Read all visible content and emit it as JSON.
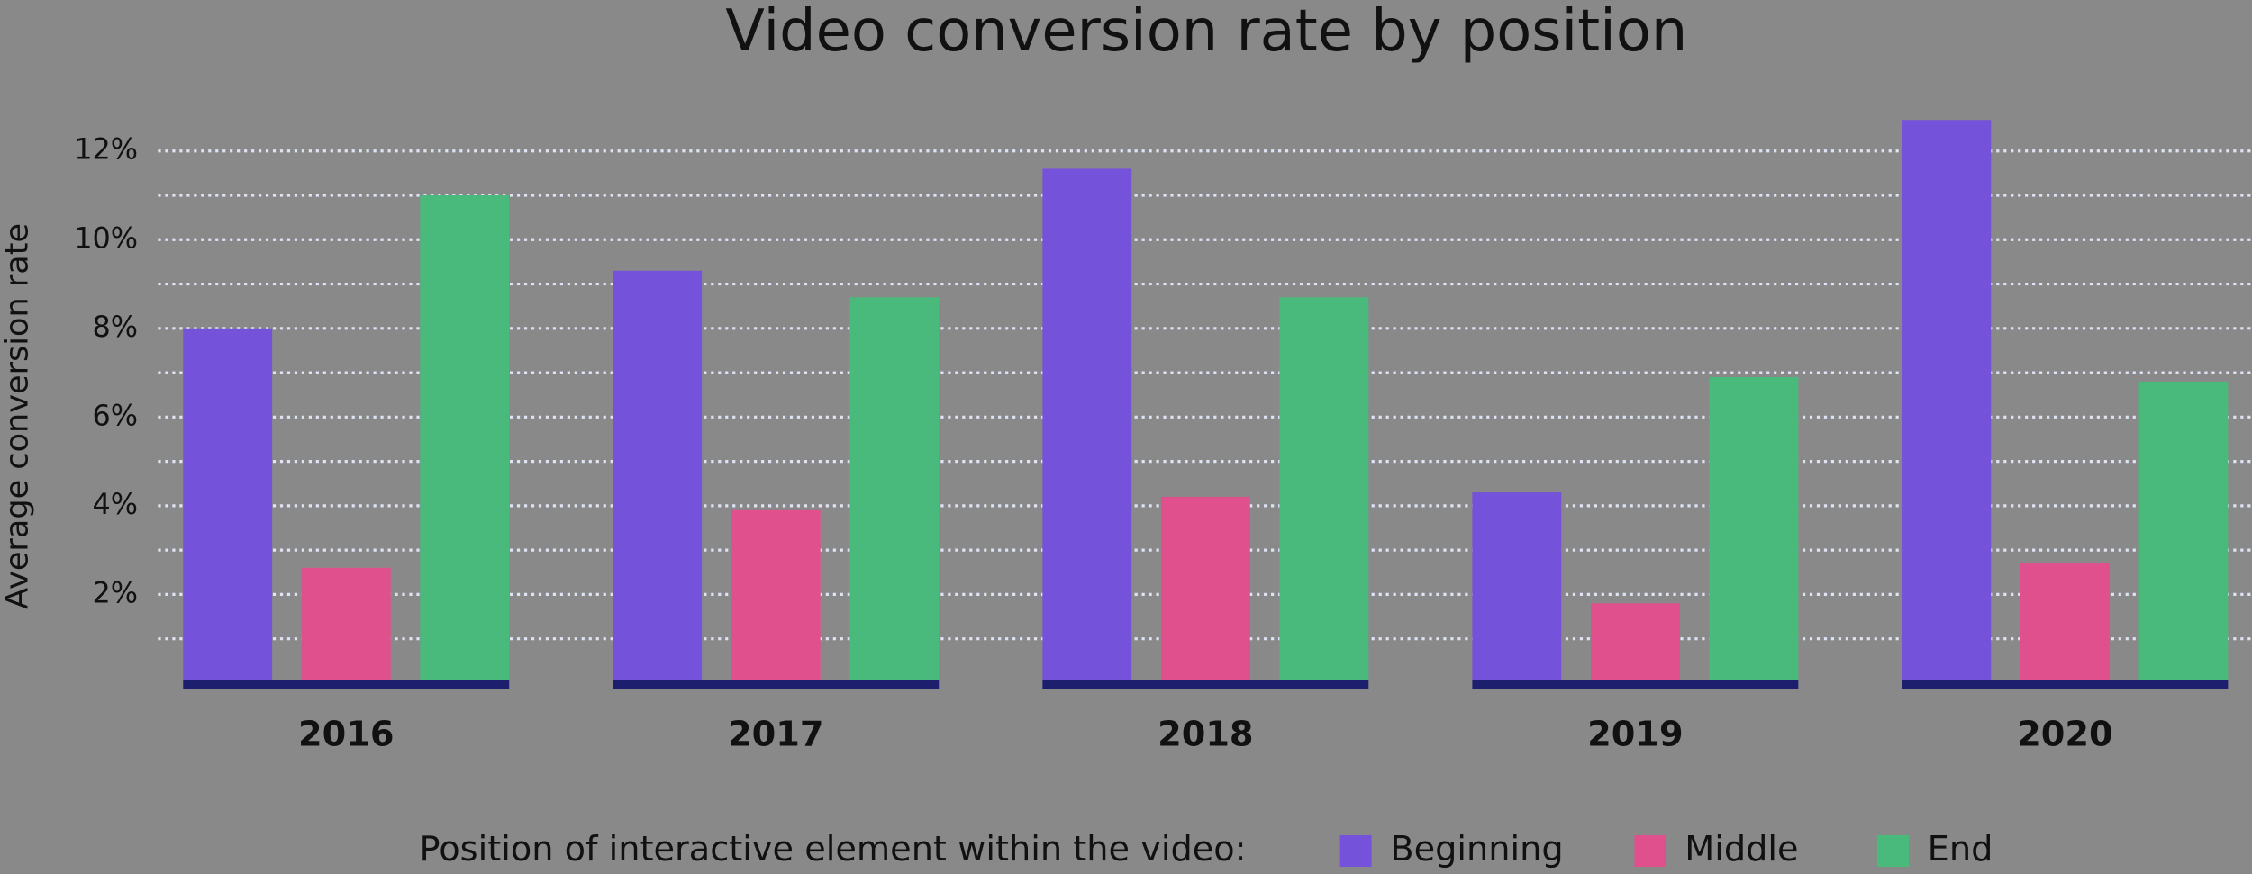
{
  "chart_data": {
    "type": "bar",
    "title": "Video conversion rate by position",
    "y_label": "Average conversion rate",
    "legend_title": "Position of interactive element within the video:",
    "categories": [
      "2016",
      "2017",
      "2018",
      "2019",
      "2020"
    ],
    "series": [
      {
        "name": "Beginning",
        "color": "#7452d9",
        "values": [
          8.0,
          9.3,
          11.6,
          4.3,
          12.7
        ]
      },
      {
        "name": "Middle",
        "color": "#e0508c",
        "values": [
          2.6,
          3.9,
          4.2,
          1.8,
          2.7
        ]
      },
      {
        "name": "End",
        "color": "#4aba7c",
        "values": [
          11.0,
          8.7,
          8.7,
          6.9,
          6.8
        ]
      }
    ],
    "ylim": [
      0,
      13
    ],
    "yticks": [
      {
        "value": 2,
        "label": "2%"
      },
      {
        "value": 4,
        "label": "4%"
      },
      {
        "value": 6,
        "label": "6%"
      },
      {
        "value": 8,
        "label": "8%"
      },
      {
        "value": 10,
        "label": "10%"
      },
      {
        "value": 12,
        "label": "12%"
      }
    ],
    "minor_yticks": [
      1,
      3,
      5,
      7,
      9,
      11
    ],
    "grid": true,
    "legend_position": "bottom"
  }
}
